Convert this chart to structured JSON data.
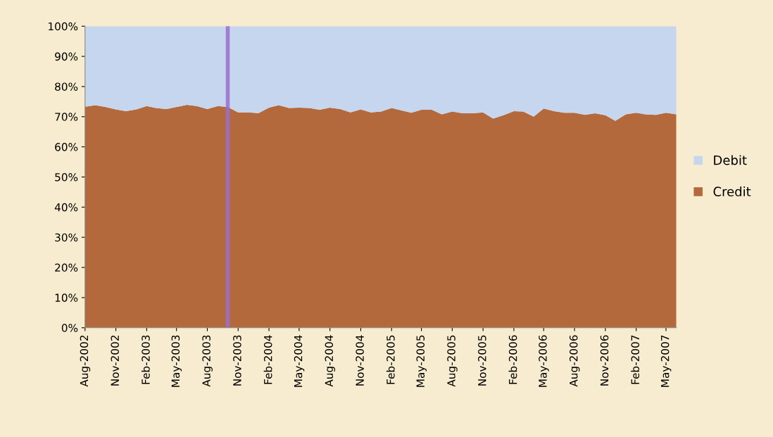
{
  "chart_data": {
    "type": "area",
    "stacked": true,
    "x": [
      "2002-08",
      "2002-09",
      "2002-10",
      "2002-11",
      "2002-12",
      "2003-01",
      "2003-02",
      "2003-03",
      "2003-04",
      "2003-05",
      "2003-06",
      "2003-07",
      "2003-08",
      "2003-09",
      "2003-10",
      "2003-11",
      "2003-12",
      "2004-01",
      "2004-02",
      "2004-03",
      "2004-04",
      "2004-05",
      "2004-06",
      "2004-07",
      "2004-08",
      "2004-09",
      "2004-10",
      "2004-11",
      "2004-12",
      "2005-01",
      "2005-02",
      "2005-03",
      "2005-04",
      "2005-05",
      "2005-06",
      "2005-07",
      "2005-08",
      "2005-09",
      "2005-10",
      "2005-11",
      "2005-12",
      "2006-01",
      "2006-02",
      "2006-03",
      "2006-04",
      "2006-05",
      "2006-06",
      "2006-07",
      "2006-08",
      "2006-09",
      "2006-10",
      "2006-11",
      "2006-12",
      "2007-01",
      "2007-02",
      "2007-03",
      "2007-04",
      "2007-05",
      "2007-06"
    ],
    "series": [
      {
        "name": "Credit",
        "color": "#b4693c",
        "values": [
          73.3,
          73.8,
          73.2,
          72.4,
          71.8,
          72.4,
          73.5,
          72.9,
          72.5,
          73.2,
          73.9,
          73.5,
          72.5,
          73.5,
          73.2,
          71.4,
          71.4,
          71.2,
          73.0,
          73.8,
          72.9,
          73.0,
          72.9,
          72.3,
          73.0,
          72.5,
          71.4,
          72.4,
          71.4,
          71.7,
          72.9,
          72.1,
          71.3,
          72.3,
          72.3,
          70.8,
          71.7,
          71.1,
          71.1,
          71.4,
          69.4,
          70.5,
          71.8,
          71.7,
          70.0,
          72.7,
          71.8,
          71.3,
          71.3,
          70.6,
          71.1,
          70.5,
          68.6,
          70.8,
          71.3,
          70.8,
          70.6,
          71.3,
          70.8
        ]
      },
      {
        "name": "Debit",
        "color": "#c6d6ee",
        "values": [
          26.7,
          26.2,
          26.8,
          27.6,
          28.2,
          27.6,
          26.5,
          27.1,
          27.5,
          26.8,
          26.1,
          26.5,
          27.5,
          26.5,
          26.8,
          28.6,
          28.6,
          28.8,
          27.0,
          26.2,
          27.1,
          27.0,
          27.1,
          27.7,
          27.0,
          27.5,
          28.6,
          27.6,
          28.6,
          28.3,
          27.1,
          27.9,
          28.7,
          27.7,
          27.7,
          29.2,
          28.3,
          28.9,
          28.9,
          28.6,
          30.6,
          29.5,
          28.2,
          28.3,
          30.0,
          27.3,
          28.2,
          28.7,
          28.7,
          29.4,
          28.9,
          29.5,
          31.4,
          29.2,
          28.7,
          29.2,
          29.4,
          28.7,
          29.2
        ]
      }
    ],
    "xlim": [
      "2002-08",
      "2007-06"
    ],
    "xticks": [
      {
        "value": "2002-08",
        "label": "Aug-2002"
      },
      {
        "value": "2002-11",
        "label": "Nov-2002"
      },
      {
        "value": "2003-02",
        "label": "Feb-2003"
      },
      {
        "value": "2003-05",
        "label": "May-2003"
      },
      {
        "value": "2003-08",
        "label": "Aug-2003"
      },
      {
        "value": "2003-11",
        "label": "Nov-2003"
      },
      {
        "value": "2004-02",
        "label": "Feb-2004"
      },
      {
        "value": "2004-05",
        "label": "May-2004"
      },
      {
        "value": "2004-08",
        "label": "Aug-2004"
      },
      {
        "value": "2004-11",
        "label": "Nov-2004"
      },
      {
        "value": "2005-02",
        "label": "Feb-2005"
      },
      {
        "value": "2005-05",
        "label": "May-2005"
      },
      {
        "value": "2005-08",
        "label": "Aug-2005"
      },
      {
        "value": "2005-11",
        "label": "Nov-2005"
      },
      {
        "value": "2006-02",
        "label": "Feb-2006"
      },
      {
        "value": "2006-05",
        "label": "May-2006"
      },
      {
        "value": "2006-08",
        "label": "Aug-2006"
      },
      {
        "value": "2006-11",
        "label": "Nov-2006"
      },
      {
        "value": "2007-02",
        "label": "Feb-2007"
      },
      {
        "value": "2007-05",
        "label": "May-2007"
      }
    ],
    "ylim": [
      0,
      100
    ],
    "yticks": [
      {
        "value": 0,
        "label": "0%"
      },
      {
        "value": 10,
        "label": "10%"
      },
      {
        "value": 20,
        "label": "20%"
      },
      {
        "value": 30,
        "label": "30%"
      },
      {
        "value": 40,
        "label": "40%"
      },
      {
        "value": 50,
        "label": "50%"
      },
      {
        "value": 60,
        "label": "60%"
      },
      {
        "value": 70,
        "label": "70%"
      },
      {
        "value": 80,
        "label": "80%"
      },
      {
        "value": 90,
        "label": "90%"
      },
      {
        "value": 100,
        "label": "100%"
      }
    ],
    "ref_lines": [
      {
        "axis": "x",
        "value": "2003-10",
        "color": "#9a6fcf"
      }
    ],
    "legend": "right",
    "grid": false
  }
}
